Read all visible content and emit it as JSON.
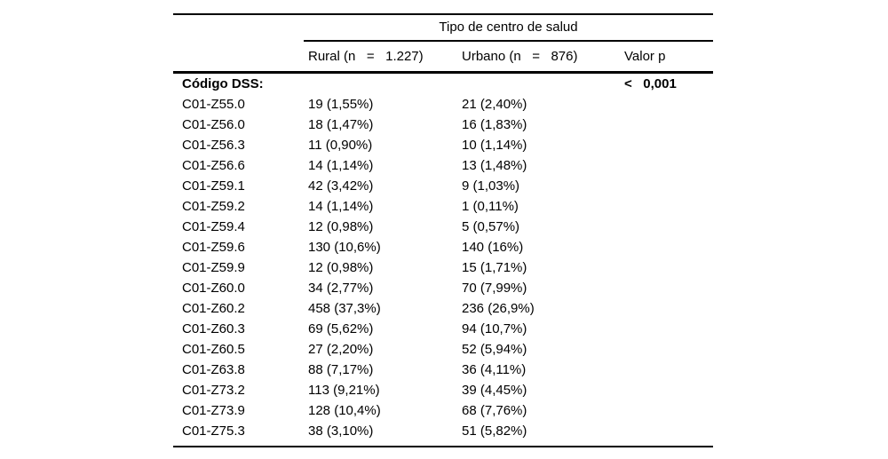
{
  "table": {
    "spanner_header": "Tipo de centro de salud",
    "columns": {
      "label": "",
      "rural": "Rural (n   =   1.227)",
      "urbano": "Urbano (n   =   876)",
      "valor_p": "Valor p"
    },
    "group_row": {
      "label": "Código DSS:",
      "rural": "",
      "urbano": "",
      "valor_p": "<   0,001"
    },
    "rows": [
      {
        "label": "C01-Z55.0",
        "rural": "19 (1,55%)",
        "urbano": "21 (2,40%)",
        "valor_p": ""
      },
      {
        "label": "C01-Z56.0",
        "rural": "18 (1,47%)",
        "urbano": "16 (1,83%)",
        "valor_p": ""
      },
      {
        "label": "C01-Z56.3",
        "rural": "11 (0,90%)",
        "urbano": "10 (1,14%)",
        "valor_p": ""
      },
      {
        "label": "C01-Z56.6",
        "rural": "14 (1,14%)",
        "urbano": "13 (1,48%)",
        "valor_p": ""
      },
      {
        "label": "C01-Z59.1",
        "rural": "42 (3,42%)",
        "urbano": "9 (1,03%)",
        "valor_p": ""
      },
      {
        "label": "C01-Z59.2",
        "rural": "14 (1,14%)",
        "urbano": "1 (0,11%)",
        "valor_p": ""
      },
      {
        "label": "C01-Z59.4",
        "rural": "12 (0,98%)",
        "urbano": "5 (0,57%)",
        "valor_p": ""
      },
      {
        "label": "C01-Z59.6",
        "rural": "130 (10,6%)",
        "urbano": "140 (16%)",
        "valor_p": ""
      },
      {
        "label": "C01-Z59.9",
        "rural": "12 (0,98%)",
        "urbano": "15 (1,71%)",
        "valor_p": ""
      },
      {
        "label": "C01-Z60.0",
        "rural": "34 (2,77%)",
        "urbano": "70 (7,99%)",
        "valor_p": ""
      },
      {
        "label": "C01-Z60.2",
        "rural": "458 (37,3%)",
        "urbano": "236 (26,9%)",
        "valor_p": ""
      },
      {
        "label": "C01-Z60.3",
        "rural": "69 (5,62%)",
        "urbano": "94 (10,7%)",
        "valor_p": ""
      },
      {
        "label": "C01-Z60.5",
        "rural": "27 (2,20%)",
        "urbano": "52 (5,94%)",
        "valor_p": ""
      },
      {
        "label": "C01-Z63.8",
        "rural": "88 (7,17%)",
        "urbano": "36 (4,11%)",
        "valor_p": ""
      },
      {
        "label": "C01-Z73.2",
        "rural": "113 (9,21%)",
        "urbano": "39 (4,45%)",
        "valor_p": ""
      },
      {
        "label": "C01-Z73.9",
        "rural": "128 (10,4%)",
        "urbano": "68 (7,76%)",
        "valor_p": ""
      },
      {
        "label": "C01-Z75.3",
        "rural": "38 (3,10%)",
        "urbano": "51 (5,82%)",
        "valor_p": ""
      }
    ]
  }
}
